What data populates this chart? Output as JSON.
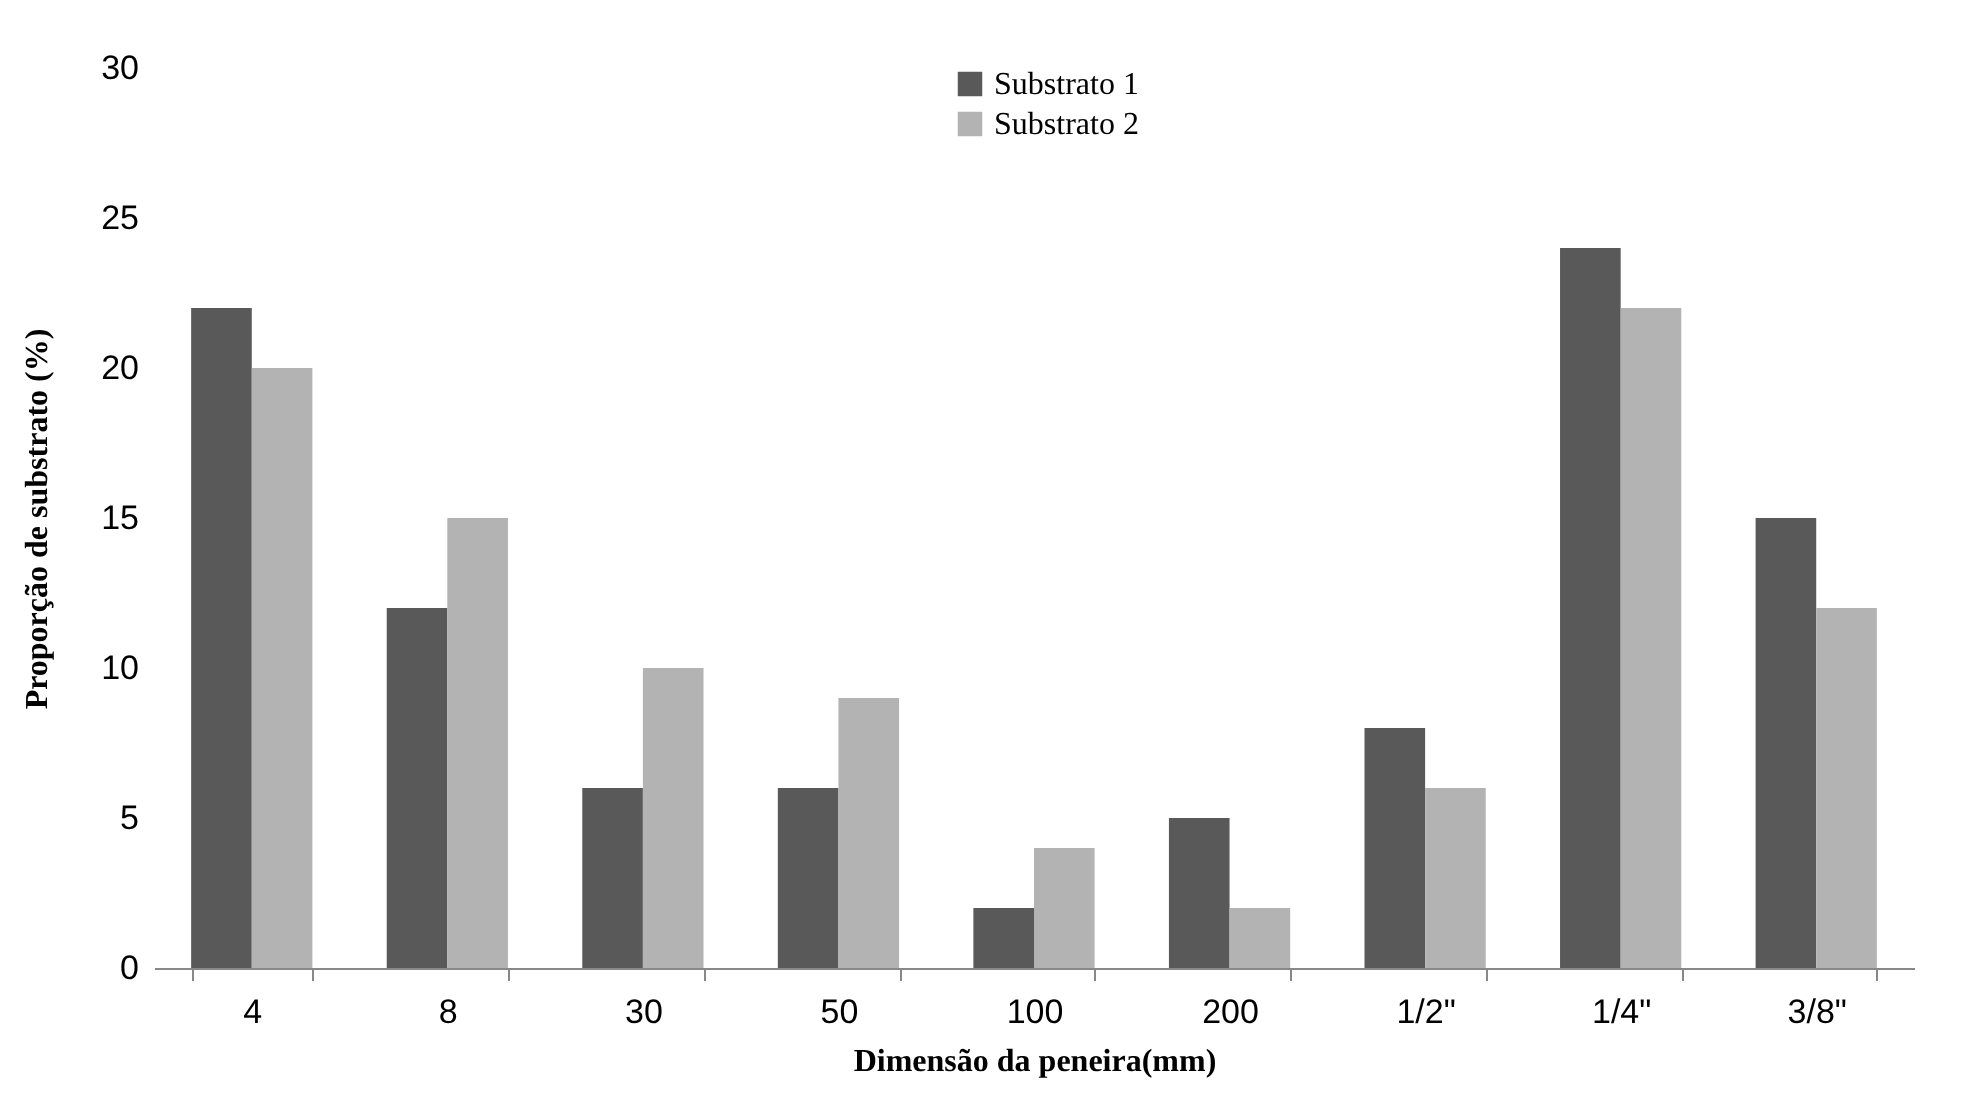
{
  "chart_data": {
    "type": "bar",
    "xlabel": "Dimensão da peneira(mm)",
    "ylabel": "Proporção de substrato (%)",
    "categories": [
      "4",
      "8",
      "30",
      "50",
      "100",
      "200",
      "1/2\"",
      "1/4\"",
      "3/8\""
    ],
    "series": [
      {
        "name": "Substrato 1",
        "color": "#595959",
        "values": [
          22,
          12,
          6,
          6,
          2,
          5,
          8,
          24,
          15
        ]
      },
      {
        "name": "Substrato 2",
        "color": "#b3b3b3",
        "values": [
          20,
          15,
          10,
          9,
          4,
          2,
          6,
          22,
          12
        ]
      }
    ],
    "ylim": [
      0,
      30
    ],
    "yticks": [
      0,
      5,
      10,
      15,
      20,
      25,
      30
    ],
    "grid": false,
    "legend": "top"
  }
}
